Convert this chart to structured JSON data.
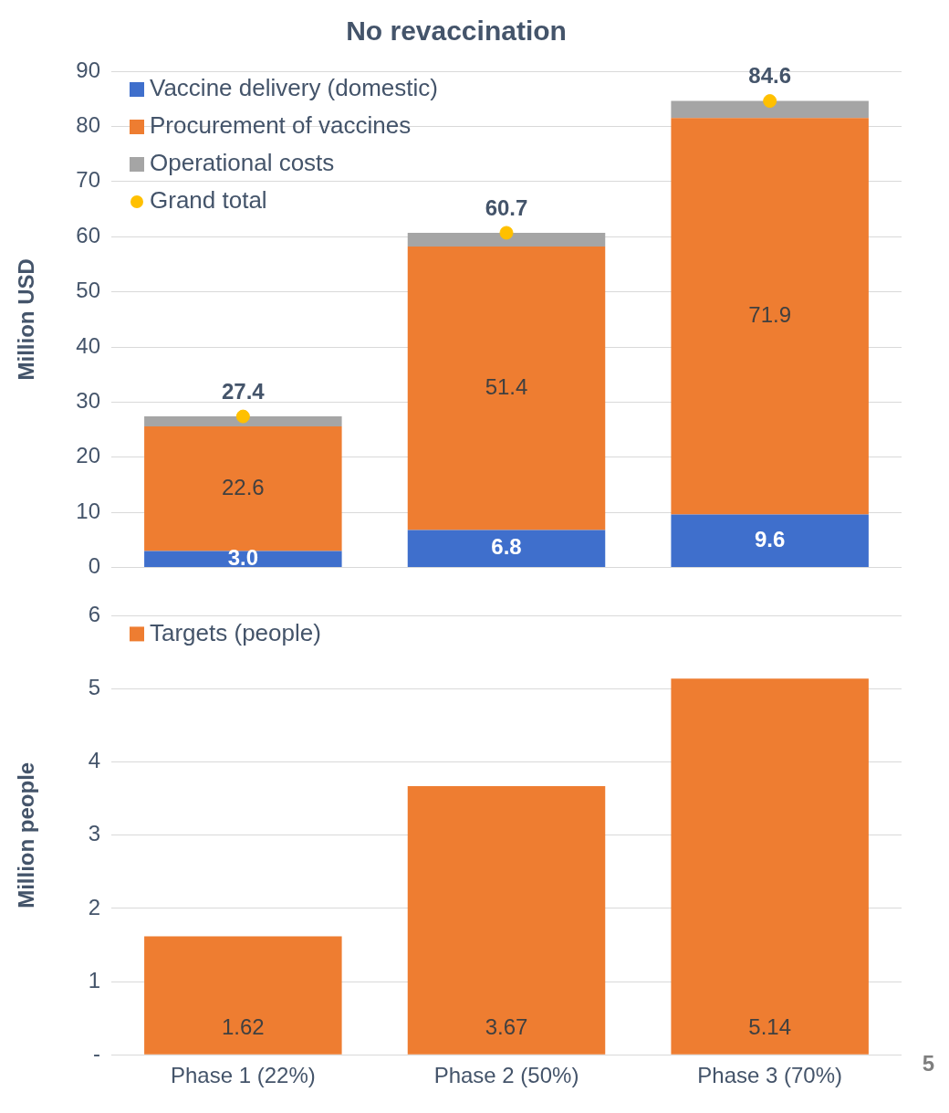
{
  "chart_data": [
    {
      "type": "bar",
      "title": "No revaccination",
      "ylabel": "Million USD",
      "categories": [
        null,
        null,
        null
      ],
      "stacked": true,
      "tick_labels": "y",
      "ylim": [
        0,
        90
      ],
      "yticks": [
        0,
        10,
        20,
        30,
        40,
        50,
        60,
        70,
        80,
        90
      ],
      "grid": "y",
      "legend": "top left",
      "marker": "circle",
      "series": [
        {
          "name": "Vaccine delivery (domestic)",
          "color": "#3f6fcc",
          "values": [
            3.0,
            6.8,
            9.6
          ],
          "value_labels": [
            "3.0",
            "6.8",
            "9.6"
          ]
        },
        {
          "name": "Procurement of vaccines",
          "color": "#ee7d31",
          "values": [
            22.6,
            51.4,
            71.9
          ],
          "value_labels": [
            "22.6",
            "51.4",
            "71.9"
          ]
        },
        {
          "name": "Operational costs",
          "color": "#a5a5a5",
          "values": [
            1.8,
            2.5,
            3.1
          ]
        },
        {
          "name": "Grand total",
          "type": "scatter",
          "color": "#ffc000",
          "values": [
            27.4,
            60.7,
            84.6
          ],
          "value_labels": [
            "27.4",
            "60.7",
            "84.6"
          ]
        }
      ]
    },
    {
      "type": "bar",
      "ylabel": "Million people",
      "categories": [
        "Phase 1 (22%)",
        "Phase 2 (50%)",
        "Phase 3 (70%)"
      ],
      "ylim": [
        0,
        6
      ],
      "yticks": [
        {
          "value": 0,
          "label": "-"
        },
        1,
        2,
        3,
        4,
        5,
        6
      ],
      "grid": "y",
      "legend": "top left",
      "annotations": [
        "5"
      ],
      "series": [
        {
          "name": "Targets (people)",
          "color": "#ee7d31",
          "values": [
            1.62,
            3.67,
            5.14
          ],
          "value_labels": [
            "1.62",
            "3.67",
            "5.14"
          ]
        }
      ]
    }
  ]
}
